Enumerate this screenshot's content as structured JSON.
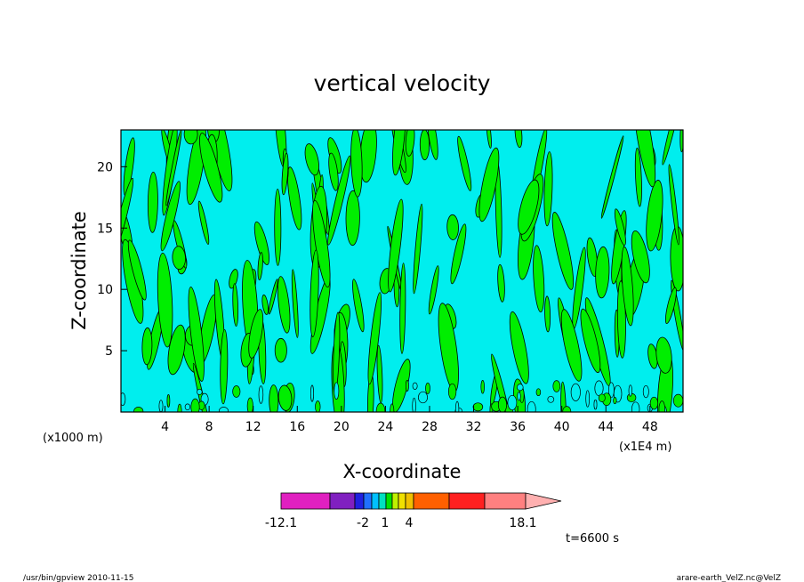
{
  "app": {
    "footer_left": "/usr/bin/gpview   2010-11-15",
    "footer_right": "arare-earth_VelZ.nc@VelZ"
  },
  "chart_data": {
    "type": "heatmap",
    "title": "vertical velocity",
    "xlabel": "X-coordinate",
    "ylabel": "Z-coordinate",
    "x_unit_label": "(x1E4 m)",
    "y_unit_label": "(x1000 m)",
    "x_ticks": [
      4,
      8,
      12,
      16,
      20,
      24,
      28,
      32,
      36,
      40,
      44,
      48
    ],
    "y_ticks": [
      5,
      10,
      15,
      20
    ],
    "xlim": [
      0,
      51
    ],
    "ylim": [
      0,
      23
    ],
    "time_label": "t=6600 s",
    "colorbar": {
      "levels": [
        -12.1,
        -2,
        1,
        4,
        18.1
      ],
      "tick_labels": [
        "-12.1",
        "-2",
        "1",
        "4",
        "18.1"
      ],
      "colors": [
        "#e020c0",
        "#8020c0",
        "#2020e0",
        "#2070ff",
        "#00c0ff",
        "#00e0c0",
        "#00e000",
        "#c0f000",
        "#f0e000",
        "#f0c000",
        "#ff6000",
        "#ff2020",
        "#ff8080",
        "#ffb0b0"
      ]
    },
    "field_colors": {
      "positive": "#00ee00",
      "negative": "#00eeee",
      "contour": "#000000"
    }
  }
}
